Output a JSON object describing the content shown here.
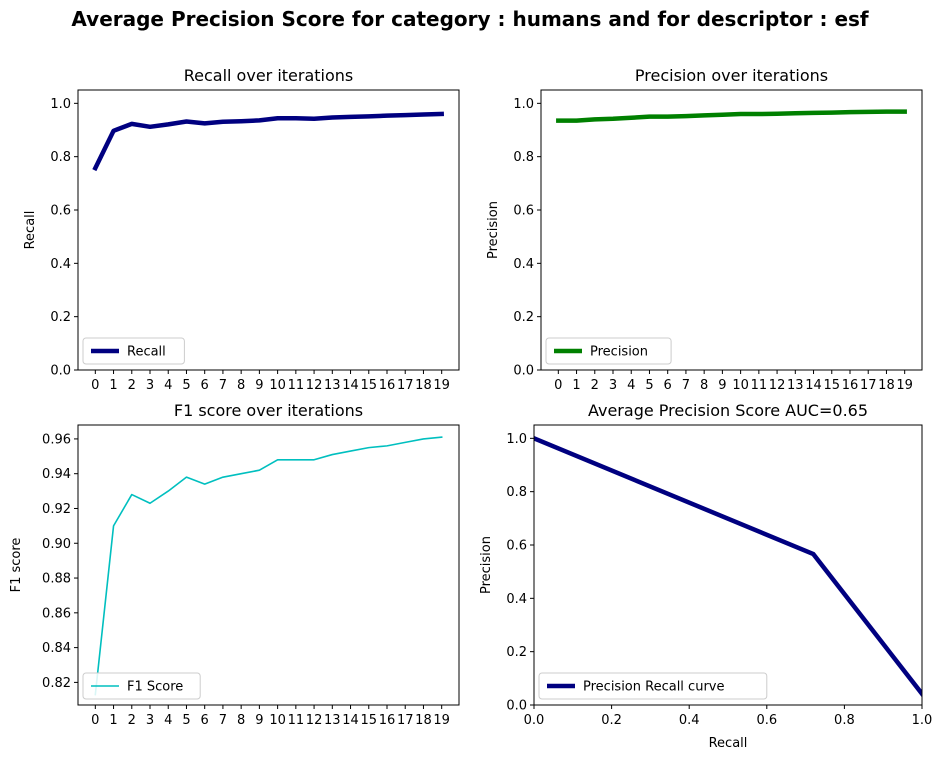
{
  "figure": {
    "title": "Average Precision Score for category : humans and for descriptor : esf"
  },
  "chart_data": [
    {
      "type": "line",
      "title": "Recall over iterations",
      "xlabel": "",
      "ylabel": "Recall",
      "x": [
        0,
        1,
        2,
        3,
        4,
        5,
        6,
        7,
        8,
        9,
        10,
        11,
        12,
        13,
        14,
        15,
        16,
        17,
        18,
        19
      ],
      "xticks": [
        "0",
        "1",
        "2",
        "3",
        "4",
        "5",
        "6",
        "7",
        "8",
        "9",
        "10",
        "11",
        "12",
        "13",
        "14",
        "15",
        "16",
        "17",
        "18",
        "19"
      ],
      "ylim": [
        0,
        1.05
      ],
      "yticks": [
        "0.0",
        "0.2",
        "0.4",
        "0.6",
        "0.8",
        "1.0"
      ],
      "legend_position": "lower-left",
      "series": [
        {
          "name": "Recall",
          "color": "#000080",
          "line_width": "thick",
          "values": [
            0.757,
            0.897,
            0.923,
            0.912,
            0.921,
            0.932,
            0.925,
            0.931,
            0.933,
            0.936,
            0.944,
            0.944,
            0.942,
            0.947,
            0.949,
            0.951,
            0.954,
            0.956,
            0.958,
            0.96
          ]
        }
      ]
    },
    {
      "type": "line",
      "title": "Precision over iterations",
      "xlabel": "",
      "ylabel": "Precision",
      "x": [
        0,
        1,
        2,
        3,
        4,
        5,
        6,
        7,
        8,
        9,
        10,
        11,
        12,
        13,
        14,
        15,
        16,
        17,
        18,
        19
      ],
      "xticks": [
        "0",
        "1",
        "2",
        "3",
        "4",
        "5",
        "6",
        "7",
        "8",
        "9",
        "10",
        "11",
        "12",
        "13",
        "14",
        "15",
        "16",
        "17",
        "18",
        "19"
      ],
      "ylim": [
        0,
        1.05
      ],
      "yticks": [
        "0.0",
        "0.2",
        "0.4",
        "0.6",
        "0.8",
        "1.0"
      ],
      "legend_position": "lower-left",
      "series": [
        {
          "name": "Precision",
          "color": "#008000",
          "line_width": "thick",
          "values": [
            0.935,
            0.935,
            0.94,
            0.942,
            0.946,
            0.95,
            0.95,
            0.952,
            0.955,
            0.957,
            0.96,
            0.96,
            0.961,
            0.963,
            0.964,
            0.965,
            0.967,
            0.968,
            0.969,
            0.969
          ]
        }
      ]
    },
    {
      "type": "line",
      "title": "F1 score over iterations",
      "xlabel": "",
      "ylabel": "F1 score",
      "x": [
        0,
        1,
        2,
        3,
        4,
        5,
        6,
        7,
        8,
        9,
        10,
        11,
        12,
        13,
        14,
        15,
        16,
        17,
        18,
        19
      ],
      "xticks": [
        "0",
        "1",
        "2",
        "3",
        "4",
        "5",
        "6",
        "7",
        "8",
        "9",
        "10",
        "11",
        "12",
        "13",
        "14",
        "15",
        "16",
        "17",
        "18",
        "19"
      ],
      "ylim": [
        0.807,
        0.968
      ],
      "yticks": [
        "0.82",
        "0.84",
        "0.86",
        "0.88",
        "0.90",
        "0.92",
        "0.94",
        "0.96"
      ],
      "legend_position": "lower-left",
      "series": [
        {
          "name": "F1 Score",
          "color": "#00BFBF",
          "line_width": "thin",
          "values": [
            0.813,
            0.91,
            0.928,
            0.923,
            0.93,
            0.938,
            0.934,
            0.938,
            0.94,
            0.942,
            0.948,
            0.948,
            0.948,
            0.951,
            0.953,
            0.955,
            0.956,
            0.958,
            0.96,
            0.961
          ]
        }
      ]
    },
    {
      "type": "line",
      "title": "Average Precision Score AUC=0.65",
      "xlabel": "Recall",
      "ylabel": "Precision",
      "xlim": [
        0,
        1
      ],
      "xtick_values": [
        0,
        0.2,
        0.4,
        0.6,
        0.8,
        1.0
      ],
      "xticks": [
        "0.0",
        "0.2",
        "0.4",
        "0.6",
        "0.8",
        "1.0"
      ],
      "ylim": [
        0,
        1.05
      ],
      "yticks": [
        "0.0",
        "0.2",
        "0.4",
        "0.6",
        "0.8",
        "1.0"
      ],
      "legend_position": "lower-left",
      "series": [
        {
          "name": "Precision Recall curve",
          "color": "#000080",
          "line_width": "thick",
          "x": [
            0,
            0.72,
            1.0
          ],
          "values": [
            1.0,
            0.566,
            0.042
          ]
        }
      ]
    }
  ]
}
